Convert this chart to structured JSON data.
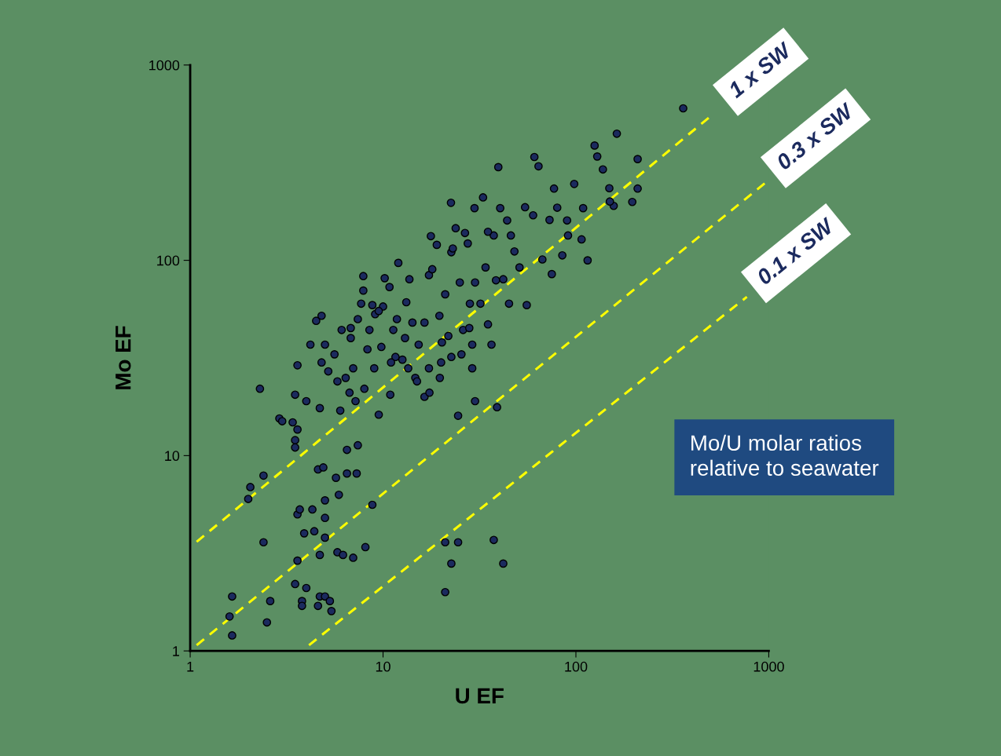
{
  "chart_data": {
    "type": "scatter",
    "xlabel": "U EF",
    "ylabel": "Mo EF",
    "log": "xy",
    "xlim": [
      1,
      1000
    ],
    "ylim": [
      1,
      1000
    ],
    "xticks": [
      1,
      10,
      100,
      1000
    ],
    "yticks": [
      1,
      10,
      100,
      1000
    ],
    "grid": false,
    "legend": false,
    "annotations": [
      "Mo/U molar ratios\nrelative to seawater"
    ],
    "series": [
      {
        "color": "#1b2a5e",
        "marker": "circle",
        "x": [
          360,
          1.65,
          1.6,
          1.65,
          2.05,
          2,
          2.4,
          2.4,
          2.5,
          2.6,
          2.3,
          2.9,
          3,
          3.4,
          3.6,
          3.5,
          3.5,
          3.5,
          3.6,
          3.6,
          3.5,
          3.6,
          3.7,
          3.8,
          3.8,
          3.9,
          4,
          4.3,
          4.4,
          4.6,
          4.7,
          4.7,
          4.6,
          4.9,
          5,
          5,
          5,
          5,
          5.3,
          5.4,
          5.7,
          5.9,
          5.8,
          6.2,
          7,
          6.5,
          8.1,
          7.3,
          8.8,
          7.4,
          6.5,
          4.7,
          4.8,
          4.5,
          4.8,
          5,
          5.6,
          5.8,
          6.1,
          6.4,
          6.7,
          6.8,
          7,
          7.2,
          7.4,
          7.7,
          7.9,
          7.9,
          8.3,
          8.5,
          8.8,
          9,
          9.1,
          9.5,
          9.8,
          10,
          10.2,
          10.8,
          11.3,
          10.9,
          11.6,
          11.8,
          12,
          12.6,
          13.2,
          13.7,
          14.2,
          14.7,
          15.3,
          16.4,
          16.4,
          17.4,
          17.3,
          17.7,
          19,
          19.6,
          20.2,
          21,
          21.8,
          22.5,
          22.6,
          23.8,
          25,
          25.5,
          26,
          26.6,
          27.5,
          28.2,
          29,
          29.8,
          30,
          32,
          33,
          34,
          35,
          36.5,
          37.5,
          38.5,
          39.6,
          40.5,
          42,
          44,
          46,
          48,
          51,
          54.5,
          55.6,
          60.9,
          64,
          67,
          73,
          77,
          80,
          85,
          91,
          98,
          107,
          109,
          129,
          138,
          149,
          157,
          125,
          163,
          209,
          209,
          196,
          24.5,
          30,
          39,
          21,
          22.6,
          24.5,
          21,
          37.5,
          42,
          13.5,
          17.3,
          22.6,
          19.7,
          29,
          4.2,
          4,
          5.2,
          6,
          6.8,
          8,
          9.5,
          11,
          13,
          15,
          18,
          20,
          23,
          28,
          35,
          45,
          60,
          75,
          90,
          115,
          150
        ],
        "values": [
          600,
          1.9,
          1.5,
          1.2,
          6.9,
          6,
          7.9,
          3.6,
          1.4,
          1.8,
          22,
          15.5,
          15,
          14.8,
          13.6,
          12,
          11,
          20.5,
          29,
          2.9,
          2.2,
          5,
          5.3,
          1.8,
          1.7,
          4,
          2.1,
          5.3,
          4.1,
          1.7,
          1.9,
          3.1,
          8.5,
          8.7,
          4.8,
          3.8,
          5.9,
          1.9,
          1.8,
          1.6,
          7.7,
          6.3,
          3.2,
          3.1,
          3,
          8.1,
          3.4,
          8.1,
          5.6,
          11.3,
          10.7,
          17.5,
          30,
          49,
          52,
          37,
          33,
          24,
          44,
          25,
          21,
          40,
          28,
          19,
          50,
          60,
          83,
          70,
          35,
          44,
          59,
          28,
          53,
          16.2,
          36,
          58,
          81,
          73,
          44,
          20.5,
          32,
          50,
          97,
          31,
          61,
          80,
          48,
          25,
          37,
          20,
          48,
          21,
          84,
          133,
          120,
          52,
          38,
          67,
          41,
          197,
          110,
          146,
          77,
          33,
          44,
          138,
          122,
          60,
          37,
          185,
          77,
          60,
          210,
          92,
          47,
          37,
          134,
          79,
          300,
          185,
          80,
          160,
          134,
          111,
          92,
          187,
          59,
          338,
          303,
          101,
          161,
          233,
          186,
          106,
          134,
          246,
          128,
          185,
          340,
          292,
          234,
          190,
          387,
          445,
          330,
          233,
          199,
          16,
          19,
          17.7,
          3.6,
          2.8,
          3.6,
          2,
          3.7,
          2.8,
          28,
          28,
          32,
          25,
          28,
          37,
          19,
          27,
          17,
          45,
          22,
          55,
          30,
          40,
          24,
          90,
          30,
          115,
          45,
          140,
          60,
          170,
          85,
          160,
          100,
          200
        ]
      },
      {
        "type": "line",
        "name": "1 x SW",
        "color": "#ffff00",
        "line_style": "dashed",
        "x": [
          1.08,
          505
        ],
        "values": [
          3.62,
          552
        ]
      },
      {
        "type": "line",
        "name": "0.3 x SW",
        "color": "#ffff00",
        "line_style": "dashed",
        "x": [
          1.08,
          973
        ],
        "values": [
          1.07,
          252
        ]
      },
      {
        "type": "line",
        "name": "0.1 x SW",
        "color": "#ffff00",
        "line_style": "dashed",
        "x": [
          4.13,
          770
        ],
        "values": [
          1.07,
          65
        ]
      }
    ]
  }
}
